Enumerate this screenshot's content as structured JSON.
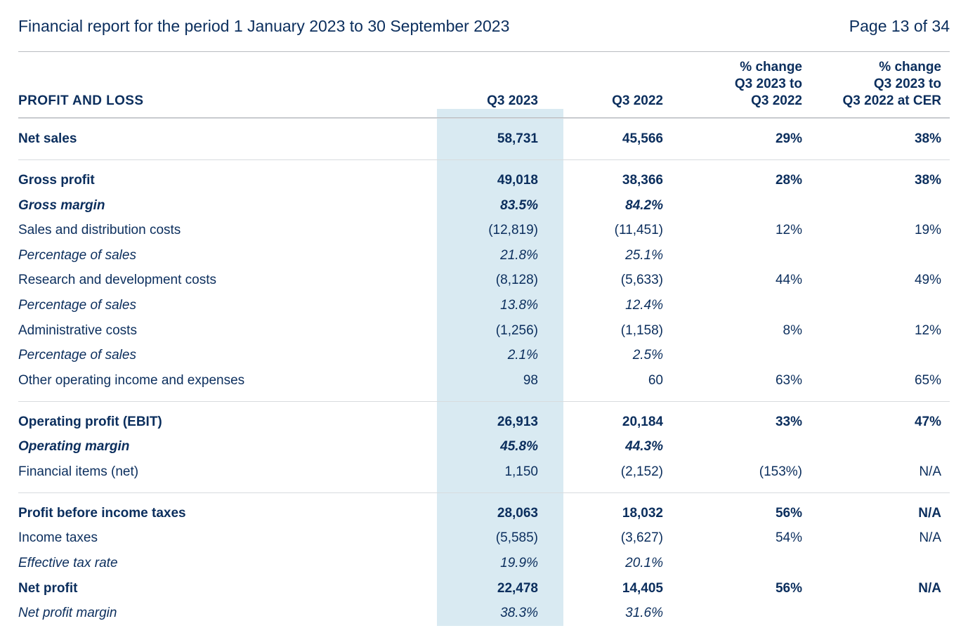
{
  "colors": {
    "text": "#0b2e5d",
    "header_border": "#b9bcc0",
    "row_border": "#d8dbde",
    "highlight_column_bg": "#d9eaf2",
    "page_bg": "#ffffff"
  },
  "typography": {
    "base_font_size_pt": 14,
    "header_font_size_pt": 17,
    "font_family": "Segoe UI / Helvetica Neue"
  },
  "header": {
    "title": "Financial report for the period 1 January 2023 to 30 September 2023",
    "page_indicator": "Page 13 of 34"
  },
  "table": {
    "type": "table",
    "section_title": "PROFIT AND LOSS",
    "highlighted_column_index": 1,
    "columns": [
      {
        "key": "label",
        "label": "",
        "align": "left"
      },
      {
        "key": "q3_2023",
        "label": "Q3 2023",
        "align": "right"
      },
      {
        "key": "q3_2022",
        "label": "Q3 2022",
        "align": "right"
      },
      {
        "key": "pct_change",
        "label_lines": [
          "% change",
          "Q3 2023 to",
          "Q3 2022"
        ],
        "align": "right"
      },
      {
        "key": "pct_change_cer",
        "label_lines": [
          "% change",
          "Q3 2023 to",
          "Q3 2022 at CER"
        ],
        "align": "right"
      }
    ],
    "rows": [
      {
        "label": "Net sales",
        "q3_2023": "58,731",
        "q3_2022": "45,566",
        "pct_change": "29%",
        "pct_change_cer": "38%",
        "style": "bold",
        "section_top": true,
        "section_bottom": true,
        "first": true
      },
      {
        "label": "Gross profit",
        "q3_2023": "49,018",
        "q3_2022": "38,366",
        "pct_change": "28%",
        "pct_change_cer": "38%",
        "style": "bold",
        "section_top": true
      },
      {
        "label": "Gross margin",
        "q3_2023": "83.5%",
        "q3_2022": "84.2%",
        "pct_change": "",
        "pct_change_cer": "",
        "style": "italic bold"
      },
      {
        "label": "Sales and distribution costs",
        "q3_2023": "(12,819)",
        "q3_2022": "(11,451)",
        "pct_change": "12%",
        "pct_change_cer": "19%",
        "style": "light"
      },
      {
        "label": "Percentage of sales",
        "q3_2023": "21.8%",
        "q3_2022": "25.1%",
        "pct_change": "",
        "pct_change_cer": "",
        "style": "italic"
      },
      {
        "label": "Research and development costs",
        "q3_2023": "(8,128)",
        "q3_2022": "(5,633)",
        "pct_change": "44%",
        "pct_change_cer": "49%",
        "style": "light"
      },
      {
        "label": "Percentage of sales",
        "q3_2023": "13.8%",
        "q3_2022": "12.4%",
        "pct_change": "",
        "pct_change_cer": "",
        "style": "italic"
      },
      {
        "label": "Administrative costs",
        "q3_2023": "(1,256)",
        "q3_2022": "(1,158)",
        "pct_change": "8%",
        "pct_change_cer": "12%",
        "style": "light"
      },
      {
        "label": "Percentage of sales",
        "q3_2023": "2.1%",
        "q3_2022": "2.5%",
        "pct_change": "",
        "pct_change_cer": "",
        "style": "italic"
      },
      {
        "label": "Other operating income and expenses",
        "q3_2023": "98",
        "q3_2022": "60",
        "pct_change": "63%",
        "pct_change_cer": "65%",
        "style": "light",
        "section_bottom": true
      },
      {
        "label": "Operating profit (EBIT)",
        "q3_2023": "26,913",
        "q3_2022": "20,184",
        "pct_change": "33%",
        "pct_change_cer": "47%",
        "style": "bold",
        "section_top": true
      },
      {
        "label": "Operating margin",
        "q3_2023": "45.8%",
        "q3_2022": "44.3%",
        "pct_change": "",
        "pct_change_cer": "",
        "style": "italic bold"
      },
      {
        "label": "Financial items (net)",
        "q3_2023": "1,150",
        "q3_2022": "(2,152)",
        "pct_change": "(153%)",
        "pct_change_cer": "N/A",
        "style": "light",
        "section_bottom": true
      },
      {
        "label": "Profit before income taxes",
        "q3_2023": "28,063",
        "q3_2022": "18,032",
        "pct_change": "56%",
        "pct_change_cer": "N/A",
        "style": "bold",
        "section_top": true
      },
      {
        "label": "Income taxes",
        "q3_2023": "(5,585)",
        "q3_2022": "(3,627)",
        "pct_change": "54%",
        "pct_change_cer": "N/A",
        "style": "light"
      },
      {
        "label": "Effective tax rate",
        "q3_2023": "19.9%",
        "q3_2022": "20.1%",
        "pct_change": "",
        "pct_change_cer": "",
        "style": "italic"
      },
      {
        "label": "Net profit",
        "q3_2023": "22,478",
        "q3_2022": "14,405",
        "pct_change": "56%",
        "pct_change_cer": "N/A",
        "style": "bold"
      },
      {
        "label": "Net profit margin",
        "q3_2023": "38.3%",
        "q3_2022": "31.6%",
        "pct_change": "",
        "pct_change_cer": "",
        "style": "italic"
      }
    ]
  }
}
